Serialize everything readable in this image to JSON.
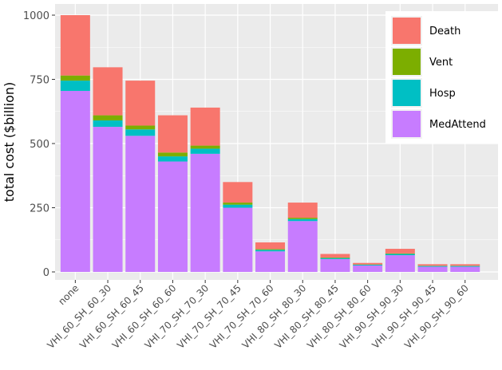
{
  "chart_data": {
    "type": "bar",
    "stacked": true,
    "ylabel": "total cost ($billion)",
    "xlabel": "",
    "ylim": [
      0,
      1000
    ],
    "yticks": [
      0,
      250,
      500,
      750,
      1000
    ],
    "grid": true,
    "legend_position": "top-right",
    "categories": [
      "none",
      "VHI_60_SH_60_30",
      "VHI_60_SH_60_45",
      "VHI_60_SH_60_60",
      "VHI_70_SH_70_30",
      "VHI_70_SH_70_45",
      "VHI_70_SH_70_60",
      "VHI_80_SH_80_30",
      "VHI_80_SH_80_45",
      "VHI_80_SH_80_60",
      "VHI_90_SH_90_30",
      "VHI_90_SH_90_45",
      "VHI_90_SH_90_60"
    ],
    "series": [
      {
        "name": "MedAttend",
        "color": "#C77CFF",
        "values": [
          705,
          565,
          530,
          430,
          460,
          250,
          80,
          198,
          50,
          25,
          65,
          20,
          20
        ]
      },
      {
        "name": "Hosp",
        "color": "#00BFC4",
        "values": [
          40,
          25,
          25,
          20,
          20,
          12,
          6,
          8,
          4,
          3,
          5,
          3,
          3
        ]
      },
      {
        "name": "Vent",
        "color": "#7CAE00",
        "values": [
          20,
          20,
          15,
          15,
          12,
          8,
          3,
          5,
          2,
          1,
          2,
          1,
          1
        ]
      },
      {
        "name": "Death",
        "color": "#F8766D",
        "values": [
          235,
          187,
          175,
          145,
          148,
          80,
          26,
          59,
          14,
          6,
          18,
          6,
          6
        ]
      }
    ]
  }
}
